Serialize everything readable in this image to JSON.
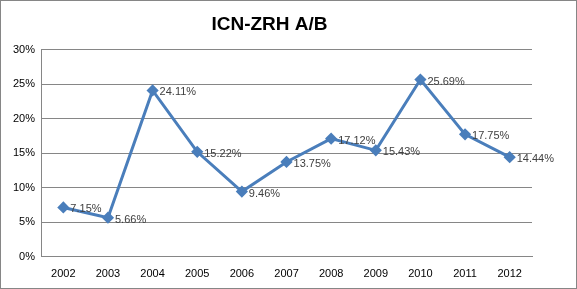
{
  "chart_data": {
    "type": "line",
    "title": "ICN-ZRH A/B",
    "categories": [
      "2002",
      "2003",
      "2004",
      "2005",
      "2006",
      "2007",
      "2008",
      "2009",
      "2010",
      "2011",
      "2012"
    ],
    "values": [
      7.15,
      5.66,
      24.11,
      15.22,
      9.46,
      13.75,
      17.12,
      15.43,
      25.69,
      17.75,
      14.44
    ],
    "value_labels": [
      "7.15%",
      "5.66%",
      "24.11%",
      "15.22%",
      "9.46%",
      "13.75%",
      "17.12%",
      "15.43%",
      "25.69%",
      "17.75%",
      "14.44%"
    ],
    "color": "#4a7ebb",
    "marker": "diamond",
    "data_labels": true,
    "ylim": [
      0,
      30
    ],
    "yticks": [
      {
        "value": 0,
        "label": "0%"
      },
      {
        "value": 5,
        "label": "5%"
      },
      {
        "value": 10,
        "label": "10%"
      },
      {
        "value": 15,
        "label": "15%"
      },
      {
        "value": 20,
        "label": "20%"
      },
      {
        "value": 25,
        "label": "25%"
      },
      {
        "value": 30,
        "label": "30%"
      }
    ],
    "grid": true
  }
}
